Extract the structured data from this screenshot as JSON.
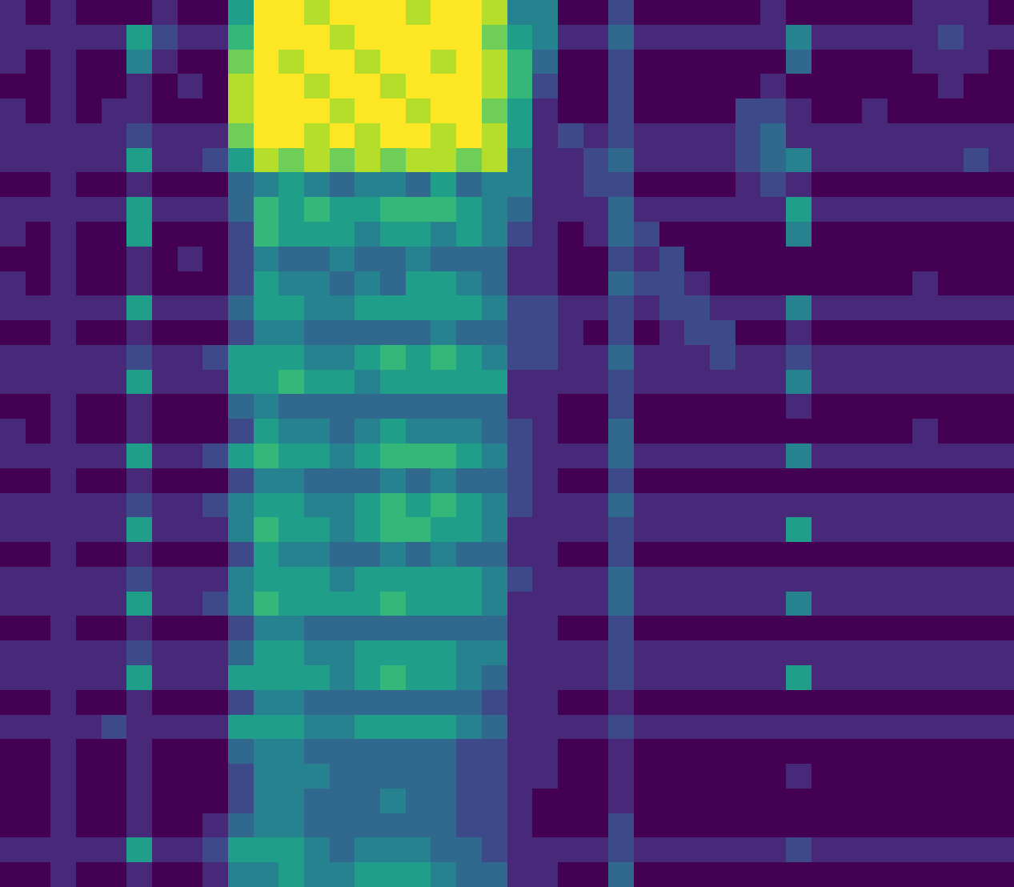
{
  "chart_data": {
    "type": "heatmap",
    "tick_labels": false,
    "color_range": [
      0,
      9
    ],
    "cells": [
      [
        1,
        0,
        1,
        0,
        0,
        0,
        1,
        0,
        0,
        5,
        9,
        9,
        8,
        9,
        9,
        9,
        8,
        9,
        9,
        8,
        4,
        4,
        0,
        0,
        2,
        0,
        0,
        0,
        0,
        0,
        1,
        0,
        0,
        0,
        0,
        0,
        1,
        1,
        1,
        0
      ],
      [
        1,
        1,
        1,
        1,
        1,
        5,
        2,
        1,
        1,
        6,
        9,
        9,
        9,
        8,
        9,
        9,
        9,
        9,
        9,
        7,
        5,
        4,
        1,
        1,
        3,
        1,
        1,
        1,
        1,
        1,
        1,
        4,
        1,
        1,
        1,
        1,
        1,
        2,
        1,
        1
      ],
      [
        1,
        0,
        1,
        0,
        0,
        4,
        1,
        0,
        0,
        7,
        9,
        8,
        9,
        9,
        8,
        9,
        9,
        8,
        9,
        8,
        6,
        3,
        0,
        0,
        2,
        0,
        0,
        0,
        0,
        0,
        0,
        3,
        0,
        0,
        0,
        0,
        1,
        1,
        1,
        0
      ],
      [
        0,
        0,
        1,
        0,
        0,
        1,
        0,
        1,
        0,
        8,
        9,
        9,
        8,
        9,
        9,
        8,
        9,
        9,
        9,
        8,
        6,
        2,
        0,
        0,
        2,
        0,
        0,
        0,
        0,
        0,
        1,
        0,
        0,
        0,
        0,
        0,
        0,
        1,
        0,
        0
      ],
      [
        1,
        0,
        1,
        0,
        1,
        1,
        0,
        0,
        0,
        8,
        9,
        9,
        9,
        8,
        9,
        9,
        8,
        9,
        9,
        7,
        5,
        1,
        0,
        0,
        2,
        0,
        0,
        0,
        0,
        2,
        2,
        1,
        0,
        0,
        1,
        0,
        0,
        0,
        0,
        0
      ],
      [
        1,
        1,
        1,
        1,
        1,
        2,
        1,
        1,
        1,
        7,
        9,
        9,
        8,
        9,
        8,
        9,
        9,
        8,
        9,
        8,
        5,
        1,
        2,
        1,
        2,
        1,
        1,
        1,
        1,
        2,
        3,
        1,
        1,
        1,
        1,
        1,
        1,
        1,
        1,
        1
      ],
      [
        1,
        1,
        1,
        1,
        1,
        5,
        1,
        1,
        2,
        5,
        8,
        7,
        8,
        7,
        8,
        7,
        8,
        8,
        7,
        8,
        4,
        1,
        1,
        2,
        3,
        1,
        1,
        1,
        1,
        2,
        3,
        4,
        1,
        1,
        1,
        1,
        1,
        1,
        2,
        1
      ],
      [
        0,
        0,
        1,
        0,
        0,
        1,
        0,
        0,
        0,
        3,
        4,
        5,
        4,
        3,
        4,
        4,
        3,
        5,
        3,
        4,
        4,
        1,
        1,
        2,
        2,
        0,
        0,
        0,
        0,
        1,
        2,
        1,
        0,
        0,
        0,
        0,
        0,
        0,
        0,
        0
      ],
      [
        1,
        1,
        1,
        1,
        1,
        5,
        1,
        1,
        1,
        3,
        6,
        5,
        6,
        5,
        5,
        6,
        6,
        6,
        5,
        4,
        3,
        1,
        1,
        1,
        3,
        1,
        1,
        1,
        1,
        1,
        1,
        5,
        1,
        1,
        1,
        1,
        1,
        1,
        1,
        1
      ],
      [
        1,
        0,
        1,
        0,
        0,
        5,
        0,
        0,
        0,
        2,
        6,
        5,
        5,
        5,
        4,
        5,
        5,
        4,
        5,
        4,
        2,
        1,
        0,
        1,
        3,
        2,
        0,
        0,
        0,
        0,
        0,
        4,
        0,
        0,
        0,
        0,
        0,
        0,
        0,
        0
      ],
      [
        0,
        0,
        1,
        0,
        0,
        1,
        0,
        1,
        0,
        2,
        4,
        3,
        3,
        4,
        3,
        3,
        4,
        3,
        3,
        3,
        1,
        1,
        0,
        0,
        2,
        1,
        2,
        0,
        0,
        0,
        0,
        0,
        0,
        0,
        0,
        0,
        0,
        0,
        0,
        0
      ],
      [
        1,
        0,
        1,
        0,
        0,
        1,
        0,
        0,
        0,
        2,
        5,
        4,
        4,
        3,
        4,
        3,
        5,
        5,
        4,
        3,
        1,
        1,
        0,
        0,
        3,
        2,
        2,
        1,
        0,
        0,
        0,
        0,
        0,
        0,
        0,
        0,
        1,
        0,
        0,
        0
      ],
      [
        1,
        1,
        1,
        1,
        1,
        5,
        1,
        1,
        1,
        3,
        5,
        5,
        4,
        4,
        5,
        5,
        5,
        5,
        5,
        4,
        2,
        2,
        1,
        1,
        2,
        1,
        2,
        2,
        1,
        1,
        1,
        4,
        1,
        1,
        1,
        1,
        1,
        1,
        1,
        1
      ],
      [
        0,
        0,
        1,
        0,
        0,
        1,
        0,
        0,
        0,
        2,
        4,
        4,
        3,
        3,
        3,
        3,
        3,
        4,
        3,
        3,
        2,
        2,
        1,
        0,
        2,
        0,
        1,
        2,
        2,
        0,
        0,
        1,
        0,
        0,
        0,
        0,
        0,
        0,
        0,
        0
      ],
      [
        1,
        1,
        1,
        1,
        1,
        2,
        1,
        1,
        2,
        5,
        5,
        5,
        4,
        4,
        5,
        6,
        5,
        6,
        5,
        4,
        2,
        2,
        1,
        1,
        3,
        1,
        1,
        1,
        2,
        1,
        1,
        2,
        1,
        1,
        1,
        1,
        1,
        1,
        1,
        1
      ],
      [
        1,
        1,
        1,
        1,
        1,
        5,
        1,
        1,
        1,
        5,
        5,
        6,
        5,
        5,
        4,
        5,
        5,
        5,
        5,
        5,
        1,
        1,
        1,
        1,
        2,
        1,
        1,
        1,
        1,
        1,
        1,
        4,
        1,
        1,
        1,
        1,
        1,
        1,
        1,
        1
      ],
      [
        0,
        0,
        1,
        0,
        0,
        1,
        0,
        0,
        0,
        3,
        4,
        3,
        3,
        3,
        3,
        3,
        3,
        3,
        3,
        3,
        1,
        1,
        0,
        0,
        2,
        0,
        0,
        0,
        0,
        0,
        0,
        1,
        0,
        0,
        0,
        0,
        0,
        0,
        0,
        0
      ],
      [
        1,
        0,
        1,
        0,
        0,
        1,
        0,
        0,
        0,
        2,
        5,
        4,
        4,
        3,
        4,
        5,
        4,
        4,
        4,
        3,
        2,
        1,
        0,
        0,
        3,
        0,
        0,
        0,
        0,
        0,
        0,
        0,
        0,
        0,
        0,
        0,
        1,
        0,
        0,
        0
      ],
      [
        1,
        1,
        1,
        1,
        1,
        5,
        1,
        1,
        2,
        5,
        6,
        5,
        5,
        4,
        5,
        6,
        6,
        6,
        5,
        4,
        2,
        1,
        1,
        1,
        3,
        1,
        1,
        1,
        1,
        1,
        1,
        4,
        1,
        1,
        1,
        1,
        1,
        1,
        1,
        1
      ],
      [
        0,
        0,
        1,
        0,
        0,
        1,
        0,
        0,
        0,
        2,
        4,
        4,
        3,
        3,
        3,
        4,
        3,
        4,
        3,
        3,
        2,
        1,
        0,
        0,
        2,
        0,
        0,
        0,
        0,
        0,
        0,
        0,
        0,
        0,
        0,
        0,
        0,
        0,
        0,
        0
      ],
      [
        1,
        1,
        1,
        1,
        1,
        2,
        1,
        1,
        2,
        4,
        5,
        5,
        4,
        4,
        5,
        6,
        5,
        6,
        5,
        4,
        2,
        1,
        1,
        1,
        3,
        1,
        1,
        1,
        1,
        1,
        1,
        1,
        1,
        1,
        1,
        1,
        1,
        1,
        1,
        1
      ],
      [
        1,
        1,
        1,
        1,
        1,
        5,
        1,
        1,
        1,
        4,
        6,
        5,
        5,
        4,
        5,
        6,
        6,
        5,
        5,
        4,
        1,
        1,
        1,
        1,
        2,
        1,
        1,
        1,
        1,
        1,
        1,
        5,
        1,
        1,
        1,
        1,
        1,
        1,
        1,
        1
      ],
      [
        0,
        0,
        1,
        0,
        0,
        1,
        0,
        0,
        0,
        2,
        5,
        4,
        4,
        3,
        3,
        4,
        3,
        4,
        3,
        3,
        1,
        1,
        0,
        0,
        2,
        0,
        0,
        0,
        0,
        0,
        0,
        0,
        0,
        0,
        0,
        0,
        0,
        0,
        0,
        0
      ],
      [
        1,
        1,
        1,
        1,
        1,
        2,
        1,
        1,
        1,
        4,
        5,
        5,
        5,
        4,
        5,
        5,
        5,
        5,
        5,
        4,
        2,
        1,
        1,
        1,
        3,
        1,
        1,
        1,
        1,
        1,
        1,
        1,
        1,
        1,
        1,
        1,
        1,
        1,
        1,
        1
      ],
      [
        1,
        1,
        1,
        1,
        1,
        5,
        1,
        1,
        2,
        4,
        6,
        5,
        5,
        5,
        5,
        6,
        5,
        5,
        5,
        4,
        1,
        1,
        1,
        1,
        3,
        1,
        1,
        1,
        1,
        1,
        1,
        4,
        1,
        1,
        1,
        1,
        1,
        1,
        1,
        1
      ],
      [
        0,
        0,
        1,
        0,
        0,
        1,
        0,
        0,
        0,
        2,
        4,
        4,
        3,
        3,
        3,
        3,
        3,
        3,
        3,
        3,
        1,
        1,
        0,
        0,
        2,
        0,
        0,
        0,
        0,
        0,
        0,
        0,
        0,
        0,
        0,
        0,
        0,
        0,
        0,
        0
      ],
      [
        1,
        1,
        1,
        1,
        1,
        2,
        1,
        1,
        1,
        3,
        5,
        5,
        4,
        4,
        5,
        5,
        5,
        5,
        4,
        4,
        1,
        1,
        1,
        1,
        2,
        1,
        1,
        1,
        1,
        1,
        1,
        1,
        1,
        1,
        1,
        1,
        1,
        1,
        1,
        1
      ],
      [
        1,
        1,
        1,
        1,
        1,
        5,
        1,
        1,
        1,
        5,
        5,
        5,
        5,
        4,
        5,
        6,
        5,
        5,
        4,
        3,
        1,
        1,
        1,
        1,
        2,
        1,
        1,
        1,
        1,
        1,
        1,
        5,
        1,
        1,
        1,
        1,
        1,
        1,
        1,
        1
      ],
      [
        0,
        0,
        1,
        0,
        0,
        1,
        0,
        0,
        0,
        2,
        4,
        4,
        3,
        3,
        3,
        3,
        3,
        3,
        3,
        2,
        1,
        1,
        0,
        0,
        1,
        0,
        0,
        0,
        0,
        0,
        0,
        0,
        0,
        0,
        0,
        0,
        0,
        0,
        0,
        0
      ],
      [
        1,
        1,
        1,
        1,
        2,
        1,
        1,
        1,
        1,
        5,
        5,
        5,
        4,
        4,
        5,
        5,
        5,
        5,
        4,
        3,
        1,
        1,
        1,
        1,
        2,
        1,
        1,
        1,
        1,
        1,
        1,
        1,
        1,
        1,
        1,
        1,
        1,
        1,
        1,
        1
      ],
      [
        0,
        0,
        1,
        0,
        0,
        1,
        0,
        0,
        0,
        3,
        4,
        4,
        3,
        3,
        3,
        3,
        3,
        3,
        2,
        2,
        1,
        1,
        0,
        0,
        1,
        0,
        0,
        0,
        0,
        0,
        0,
        0,
        0,
        0,
        0,
        0,
        0,
        0,
        0,
        0
      ],
      [
        0,
        0,
        1,
        0,
        0,
        1,
        0,
        0,
        0,
        2,
        4,
        4,
        4,
        3,
        3,
        3,
        3,
        3,
        2,
        2,
        1,
        1,
        0,
        0,
        1,
        0,
        0,
        0,
        0,
        0,
        0,
        1,
        0,
        0,
        0,
        0,
        0,
        0,
        0,
        0
      ],
      [
        0,
        0,
        1,
        0,
        0,
        1,
        0,
        0,
        0,
        2,
        4,
        4,
        3,
        3,
        3,
        4,
        3,
        3,
        2,
        2,
        1,
        0,
        0,
        0,
        1,
        0,
        0,
        0,
        0,
        0,
        0,
        0,
        0,
        0,
        0,
        0,
        0,
        0,
        0,
        0
      ],
      [
        0,
        0,
        1,
        0,
        0,
        1,
        0,
        0,
        1,
        3,
        4,
        4,
        3,
        3,
        3,
        3,
        3,
        3,
        2,
        2,
        1,
        0,
        0,
        0,
        2,
        0,
        0,
        0,
        0,
        0,
        0,
        0,
        0,
        0,
        0,
        0,
        0,
        0,
        0,
        0
      ],
      [
        1,
        1,
        1,
        1,
        1,
        5,
        1,
        1,
        2,
        5,
        5,
        5,
        4,
        3,
        4,
        4,
        4,
        3,
        3,
        2,
        1,
        1,
        1,
        1,
        2,
        1,
        1,
        1,
        1,
        1,
        1,
        2,
        1,
        1,
        1,
        1,
        1,
        1,
        1,
        1
      ],
      [
        0,
        0,
        1,
        0,
        0,
        1,
        0,
        0,
        1,
        4,
        4,
        5,
        4,
        4,
        5,
        5,
        5,
        4,
        3,
        3,
        1,
        1,
        0,
        0,
        3,
        0,
        0,
        0,
        0,
        0,
        0,
        0,
        0,
        0,
        0,
        0,
        0,
        0,
        0,
        0
      ]
    ]
  }
}
